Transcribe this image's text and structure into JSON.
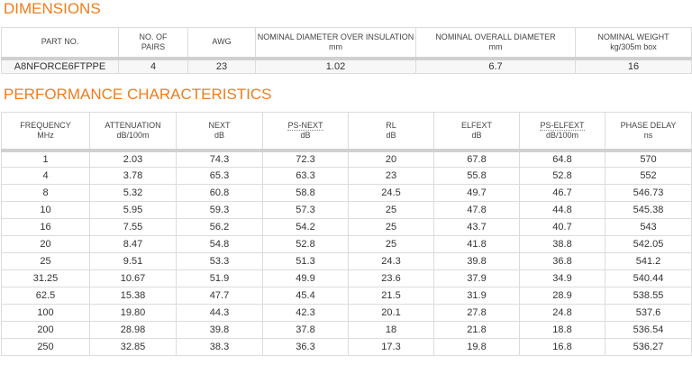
{
  "dimensions": {
    "title": "DIMENSIONS",
    "headers": [
      [
        "PART NO."
      ],
      [
        "NO. OF",
        "PAIRS"
      ],
      [
        "AWG"
      ],
      [
        "NOMINAL DIAMETER OVER INSULATION",
        "mm"
      ],
      [
        "NOMINAL OVERALL DIAMETER",
        "mm"
      ],
      [
        "NOMINAL WEIGHT",
        "kg/305m box"
      ]
    ],
    "rows": [
      [
        "A8NFORCE6FTPPE",
        "4",
        "23",
        "1.02",
        "6.7",
        "16"
      ]
    ]
  },
  "performance": {
    "title": "PERFORMANCE CHARACTERISTICS",
    "headers": [
      [
        "FREQUENCY",
        "MHz"
      ],
      [
        "ATTENUATION",
        "dB/100m"
      ],
      [
        "NEXT",
        "dB"
      ],
      [
        "PS-NEXT",
        "dB"
      ],
      [
        "RL",
        "dB"
      ],
      [
        "ELFEXT",
        "dB"
      ],
      [
        "PS-ELFEXT",
        "dB/100m"
      ],
      [
        "PHASE DELAY",
        "ns"
      ]
    ],
    "rows": [
      [
        "1",
        "2.03",
        "74.3",
        "72.3",
        "20",
        "67.8",
        "64.8",
        "570"
      ],
      [
        "4",
        "3.78",
        "65.3",
        "63.3",
        "23",
        "55.8",
        "52.8",
        "552"
      ],
      [
        "8",
        "5.32",
        "60.8",
        "58.8",
        "24.5",
        "49.7",
        "46.7",
        "546.73"
      ],
      [
        "10",
        "5.95",
        "59.3",
        "57.3",
        "25",
        "47.8",
        "44.8",
        "545.38"
      ],
      [
        "16",
        "7.55",
        "56.2",
        "54.2",
        "25",
        "43.7",
        "40.7",
        "543"
      ],
      [
        "20",
        "8.47",
        "54.8",
        "52.8",
        "25",
        "41.8",
        "38.8",
        "542.05"
      ],
      [
        "25",
        "9.51",
        "53.3",
        "51.3",
        "24.3",
        "39.8",
        "36.8",
        "541.2"
      ],
      [
        "31.25",
        "10.67",
        "51.9",
        "49.9",
        "23.6",
        "37.9",
        "34.9",
        "540.44"
      ],
      [
        "62.5",
        "15.38",
        "47.7",
        "45.4",
        "21.5",
        "31.9",
        "28.9",
        "538.55"
      ],
      [
        "100",
        "19.80",
        "44.3",
        "42.3",
        "20.1",
        "27.8",
        "24.8",
        "537.6"
      ],
      [
        "200",
        "28.98",
        "39.8",
        "37.8",
        "18",
        "21.8",
        "18.8",
        "536.54"
      ],
      [
        "250",
        "32.85",
        "38.3",
        "36.3",
        "17.3",
        "19.8",
        "16.8",
        "536.27"
      ]
    ]
  }
}
